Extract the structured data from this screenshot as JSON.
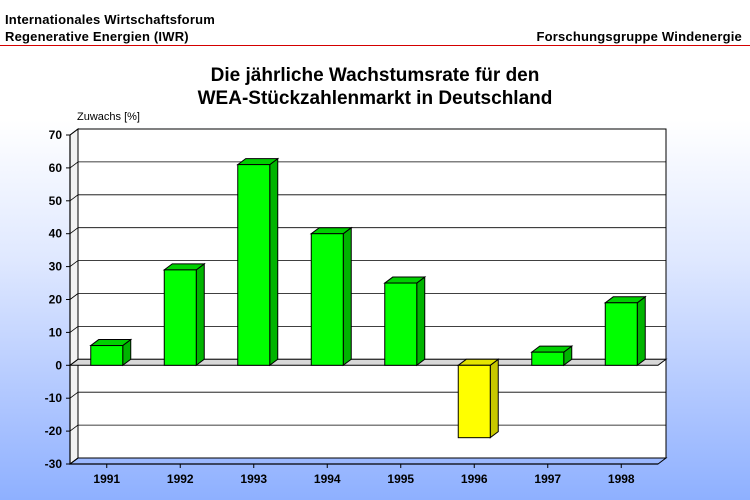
{
  "header": {
    "org_line1": "Internationales Wirtschaftsforum",
    "org_line2": "Regenerative Energien (IWR)",
    "group": "Forschungsgruppe Windenergie"
  },
  "chart_data": {
    "type": "bar",
    "title_line1": "Die jährliche Wachstumsrate für den",
    "title_line2": "WEA-Stückzahlenmarkt in Deutschland",
    "ylabel": "Zuwachs [%]",
    "xlabel": "",
    "categories": [
      "1991",
      "1992",
      "1993",
      "1994",
      "1995",
      "1996",
      "1997",
      "1998"
    ],
    "values": [
      6,
      29,
      61,
      40,
      25,
      -22,
      4,
      19
    ],
    "ylim": [
      -30,
      70
    ],
    "yticks": [
      "70",
      "60",
      "50",
      "40",
      "30",
      "20",
      "10",
      "0",
      "-10",
      "-20",
      "-30"
    ],
    "grid": true,
    "colors": {
      "positive": "#00ff00",
      "positive_side": "#00b400",
      "positive_top": "#00d000",
      "negative": "#ffff00",
      "negative_side": "#c8c800",
      "negative_top": "#e4e400",
      "plot_back": "#ffffff",
      "floor": "#d8d8d8"
    }
  }
}
